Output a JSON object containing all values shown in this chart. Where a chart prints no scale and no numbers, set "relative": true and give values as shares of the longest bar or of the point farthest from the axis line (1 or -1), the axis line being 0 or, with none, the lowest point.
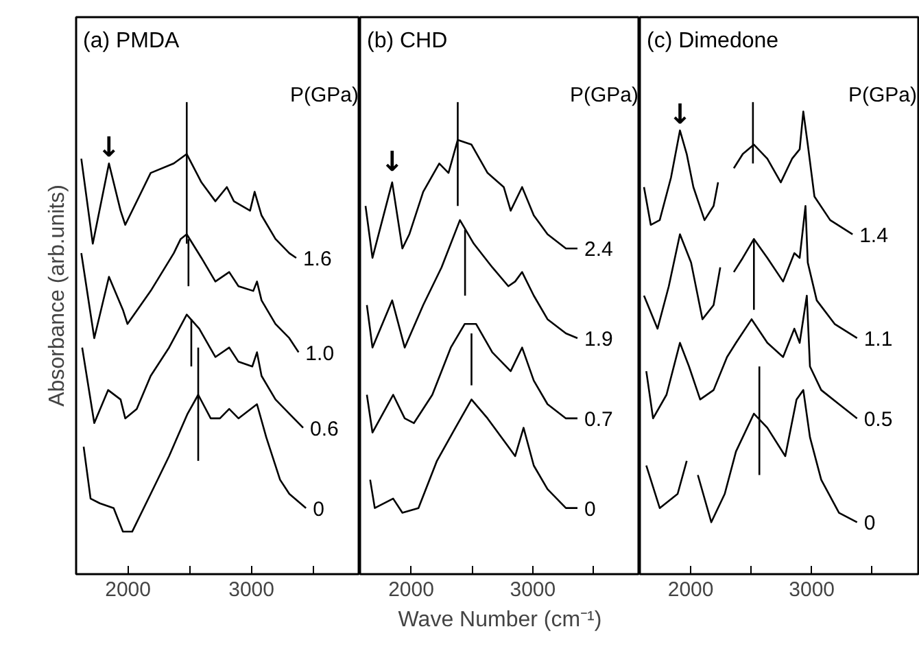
{
  "chart_data": [
    {
      "type": "line",
      "title": "(a) PMDA",
      "ylabel": "Absorbance (arb.units)",
      "legend_title": "P(GPa)",
      "relative": true,
      "xlim": [
        1580,
        3880
      ],
      "xticks": [
        2000,
        3000
      ],
      "annotations": [
        {
          "text": "↓",
          "x": 1846,
          "y": 0.87
        }
      ],
      "series": [
        {
          "name": "1.6",
          "color": "#000000",
          "x": [
            1622,
            1715,
            1846,
            1940,
            1978,
            2184,
            2371,
            2476,
            2595,
            2708,
            2801,
            2858,
            2989,
            3026,
            3082,
            3195,
            3307,
            3363
          ],
          "values": [
            0.88,
            0.7,
            0.87,
            0.77,
            0.74,
            0.85,
            0.87,
            0.89,
            0.83,
            0.79,
            0.82,
            0.79,
            0.77,
            0.81,
            0.76,
            0.71,
            0.68,
            0.67
          ]
        },
        {
          "name": "1.0",
          "color": "#000000",
          "x": [
            1622,
            1727,
            1846,
            1959,
            1996,
            2184,
            2371,
            2427,
            2476,
            2595,
            2708,
            2820,
            2895,
            3015,
            3045,
            3082,
            3195,
            3307,
            3382
          ],
          "values": [
            0.68,
            0.5,
            0.63,
            0.56,
            0.53,
            0.6,
            0.68,
            0.71,
            0.72,
            0.67,
            0.62,
            0.64,
            0.61,
            0.6,
            0.62,
            0.58,
            0.53,
            0.5,
            0.47
          ]
        },
        {
          "name": "0.6",
          "color": "#000000",
          "x": [
            1629,
            1727,
            1839,
            1940,
            1978,
            2071,
            2184,
            2333,
            2476,
            2577,
            2708,
            2820,
            2895,
            3007,
            3045,
            3082,
            3195,
            3307,
            3419
          ],
          "values": [
            0.48,
            0.32,
            0.39,
            0.37,
            0.33,
            0.35,
            0.42,
            0.48,
            0.55,
            0.52,
            0.46,
            0.48,
            0.45,
            0.44,
            0.47,
            0.42,
            0.37,
            0.34,
            0.31
          ]
        },
        {
          "name": "0",
          "color": "#000000",
          "x": [
            1641,
            1697,
            1772,
            1884,
            1959,
            2034,
            2184,
            2333,
            2483,
            2569,
            2670,
            2745,
            2820,
            2895,
            3045,
            3120,
            3232,
            3307,
            3442
          ],
          "values": [
            0.27,
            0.16,
            0.15,
            0.14,
            0.09,
            0.09,
            0.17,
            0.25,
            0.34,
            0.38,
            0.33,
            0.33,
            0.35,
            0.33,
            0.36,
            0.29,
            0.2,
            0.17,
            0.14
          ]
        },
        {
          "color": "#000000",
          "x": [
            2476,
            2476
          ],
          "values": [
            1.0,
            0.7
          ]
        },
        {
          "color": "#000000",
          "x": [
            2490,
            2490
          ],
          "values": [
            0.71,
            0.61
          ]
        },
        {
          "color": "#000000",
          "x": [
            2513,
            2513
          ],
          "values": [
            0.54,
            0.44
          ]
        },
        {
          "color": "#000000",
          "x": [
            2569,
            2569
          ],
          "values": [
            0.48,
            0.24
          ]
        }
      ]
    },
    {
      "type": "line",
      "title": "(b) CHD",
      "xlabel": "Wave Number (cm⁻¹)",
      "legend_title": "P(GPa)",
      "relative": true,
      "xlim": [
        1580,
        3880
      ],
      "xticks": [
        2000,
        3000
      ],
      "annotations": [
        {
          "text": "↓",
          "x": 1844,
          "y": 0.84
        }
      ],
      "series": [
        {
          "name": "2.4",
          "color": "#000000",
          "x": [
            1625,
            1682,
            1844,
            1928,
            1985,
            2099,
            2231,
            2307,
            2383,
            2496,
            2628,
            2761,
            2818,
            2912,
            3008,
            3121,
            3272,
            3367
          ],
          "values": [
            0.78,
            0.67,
            0.83,
            0.69,
            0.72,
            0.81,
            0.87,
            0.85,
            0.92,
            0.91,
            0.85,
            0.82,
            0.77,
            0.82,
            0.76,
            0.72,
            0.69,
            0.69
          ]
        },
        {
          "name": "1.9",
          "color": "#000000",
          "x": [
            1636,
            1682,
            1844,
            1947,
            2099,
            2250,
            2401,
            2515,
            2667,
            2799,
            2855,
            2912,
            3008,
            3121,
            3272,
            3367
          ],
          "values": [
            0.57,
            0.48,
            0.58,
            0.48,
            0.57,
            0.65,
            0.75,
            0.7,
            0.65,
            0.61,
            0.62,
            0.64,
            0.59,
            0.54,
            0.51,
            0.5
          ]
        },
        {
          "name": "0.7",
          "color": "#000000",
          "x": [
            1636,
            1682,
            1852,
            1947,
            2023,
            2174,
            2326,
            2440,
            2534,
            2667,
            2818,
            2912,
            3008,
            3121,
            3272,
            3367
          ],
          "values": [
            0.38,
            0.3,
            0.38,
            0.33,
            0.32,
            0.38,
            0.48,
            0.53,
            0.53,
            0.47,
            0.43,
            0.48,
            0.41,
            0.36,
            0.33,
            0.33
          ]
        },
        {
          "name": "0",
          "color": "#000000",
          "x": [
            1663,
            1701,
            1852,
            1928,
            2060,
            2212,
            2364,
            2496,
            2628,
            2799,
            2855,
            2924,
            3008,
            3121,
            3272,
            3367
          ],
          "values": [
            0.2,
            0.14,
            0.16,
            0.13,
            0.14,
            0.24,
            0.31,
            0.37,
            0.33,
            0.27,
            0.25,
            0.31,
            0.23,
            0.18,
            0.14,
            0.14
          ]
        },
        {
          "color": "#000000",
          "x": [
            2383,
            2383
          ],
          "values": [
            1.0,
            0.78
          ]
        },
        {
          "color": "#000000",
          "x": [
            2443,
            2443
          ],
          "values": [
            0.73,
            0.59
          ]
        },
        {
          "color": "#000000",
          "x": [
            2496,
            2496
          ],
          "values": [
            0.51,
            0.4
          ]
        }
      ]
    },
    {
      "type": "line",
      "title": "(c) Dimedone",
      "legend_title": "P(GPa)",
      "relative": true,
      "xlim": [
        1580,
        3880
      ],
      "xticks": [
        2000,
        3000
      ],
      "annotations": [
        {
          "text": "↓",
          "x": 1911,
          "y": 0.94
        }
      ],
      "series": [
        {
          "name": "1.4",
          "color": "#000000",
          "x": [
            1614,
            1670,
            1744,
            1837,
            1911,
            1967,
            2022,
            2114,
            2189,
            2226,
            2290,
            2356,
            2430,
            2522,
            2633,
            2744,
            2837,
            2900,
            2930,
            2967,
            3022,
            3152,
            3337
          ],
          "values": [
            0.82,
            0.74,
            0.75,
            0.84,
            0.94,
            0.89,
            0.82,
            0.75,
            0.78,
            0.83,
            null,
            0.86,
            0.89,
            0.91,
            0.88,
            0.83,
            0.88,
            0.9,
            0.98,
            0.91,
            0.8,
            0.75,
            0.72
          ]
        },
        {
          "name": "1.1",
          "color": "#000000",
          "x": [
            1614,
            1726,
            1819,
            1911,
            2003,
            2097,
            2189,
            2244,
            2290,
            2356,
            2430,
            2522,
            2633,
            2763,
            2856,
            2900,
            2948,
            2967,
            3041,
            3189,
            3374
          ],
          "values": [
            0.59,
            0.52,
            0.61,
            0.72,
            0.66,
            0.54,
            0.57,
            0.65,
            null,
            0.64,
            0.67,
            0.71,
            0.67,
            0.62,
            0.68,
            0.67,
            0.78,
            0.66,
            0.58,
            0.53,
            0.5
          ]
        },
        {
          "name": "0.5",
          "color": "#000000",
          "x": [
            1633,
            1689,
            1800,
            1911,
            1986,
            2078,
            2189,
            2300,
            2374,
            2503,
            2633,
            2763,
            2856,
            2900,
            2959,
            2985,
            3078,
            3225,
            3374
          ],
          "values": [
            0.43,
            0.33,
            0.38,
            0.49,
            0.44,
            0.37,
            0.39,
            0.46,
            0.49,
            0.54,
            0.49,
            0.46,
            0.52,
            0.49,
            0.59,
            0.44,
            0.39,
            0.36,
            0.33
          ]
        },
        {
          "name": "0",
          "color": "#000000",
          "x": [
            1633,
            1744,
            1892,
            1967,
            2030,
            2059,
            2170,
            2281,
            2374,
            2522,
            2633,
            2781,
            2874,
            2930,
            2985,
            3078,
            3225,
            3374
          ],
          "values": [
            0.23,
            0.14,
            0.17,
            0.24,
            null,
            0.21,
            0.11,
            0.17,
            0.26,
            0.34,
            0.31,
            0.25,
            0.37,
            0.39,
            0.29,
            0.2,
            0.13,
            0.11
          ]
        },
        {
          "color": "#000000",
          "x": [
            2514,
            2514
          ],
          "values": [
            1.0,
            0.87
          ]
        },
        {
          "color": "#000000",
          "x": [
            2522,
            2522
          ],
          "values": [
            0.71,
            0.56
          ]
        },
        {
          "color": "#000000",
          "x": [
            2567,
            2567
          ],
          "values": [
            0.44,
            0.21
          ]
        }
      ]
    }
  ]
}
